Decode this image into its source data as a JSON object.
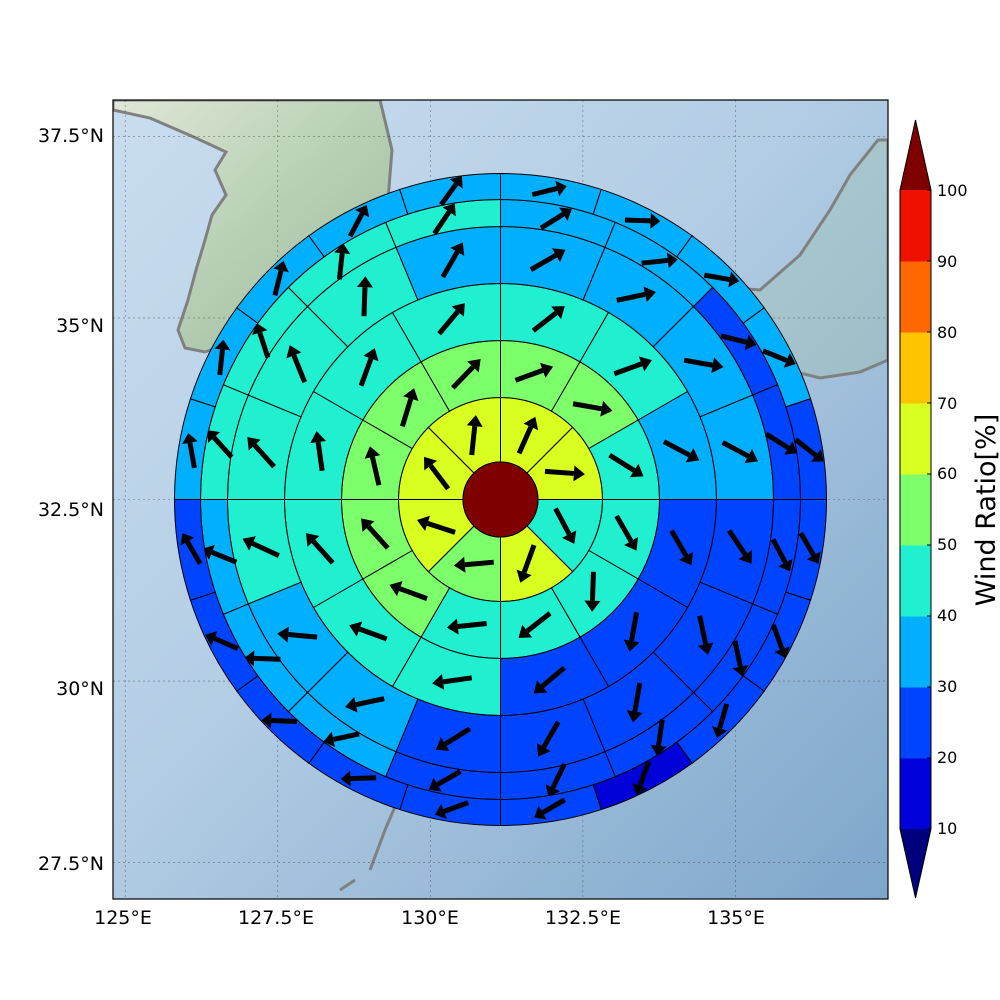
{
  "map": {
    "lon_ticks": [
      "125°E",
      "127.5°E",
      "130°E",
      "132.5°E",
      "135°E"
    ],
    "lat_ticks": [
      "37.5°N",
      "35°N",
      "32.5°N",
      "30°N",
      "27.5°N"
    ],
    "lon_tick_values": [
      125,
      127.5,
      130,
      132.5,
      135
    ],
    "lat_tick_values": [
      37.5,
      35,
      32.5,
      30,
      27.5
    ],
    "extent": {
      "lon": [
        124.8,
        137.5
      ],
      "lat": [
        27.0,
        38.0
      ]
    },
    "gridlines": true,
    "coastline_color": "#808080",
    "background": "shaded relief"
  },
  "colorbar": {
    "label": "Wind Ratio[%]",
    "ticks": [
      "10",
      "20",
      "30",
      "40",
      "50",
      "60",
      "70",
      "80",
      "90",
      "100"
    ],
    "bounds": [
      10,
      20,
      30,
      40,
      50,
      60,
      70,
      80,
      90,
      100
    ],
    "colors": [
      "#0000d8",
      "#0044ff",
      "#00b0ff",
      "#20f0d0",
      "#7cff6a",
      "#d8ff20",
      "#ffc400",
      "#ff6800",
      "#f01000"
    ],
    "under_color": "#00007f",
    "over_color": "#7f0000",
    "extend": "both"
  },
  "chart_data": {
    "type": "polar_grid",
    "center_lonlat": [
      131.15,
      32.5
    ],
    "center_color": "#7f0000",
    "ring_radii_km": [
      100,
      200,
      300,
      400,
      500,
      600
    ],
    "rings": [
      {
        "ring": 1,
        "sectors": 8,
        "values": [
          63,
          63,
          47,
          63,
          57,
          63,
          63,
          63
        ],
        "arrow_dir_deg": [
          24,
          94,
          152,
          200,
          265,
          288,
          323,
          6
        ]
      },
      {
        "ring": 2,
        "sectors": 12,
        "values": [
          55,
          55,
          43,
          42,
          43,
          43,
          48,
          53,
          53,
          53,
          53,
          55
        ],
        "arrow_dir_deg": [
          70,
          100,
          122,
          150,
          182,
          232,
          264,
          290,
          318,
          347,
          17,
          44
        ]
      },
      {
        "ring": 3,
        "sectors": 12,
        "values": [
          46,
          46,
          38,
          25,
          23,
          23,
          40,
          45,
          45,
          45,
          45,
          46
        ],
        "arrow_dir_deg": [
          52,
          70,
          118,
          150,
          190,
          230,
          262,
          290,
          318,
          352,
          20,
          40
        ]
      },
      {
        "ring": 4,
        "sectors": 16,
        "values": [
          38,
          38,
          38,
          38,
          24,
          24,
          24,
          23,
          23,
          35,
          35,
          42,
          42,
          42,
          42,
          38
        ],
        "arrow_dir_deg": [
          60,
          78,
          100,
          118,
          146,
          168,
          190,
          210,
          238,
          258,
          275,
          295,
          318,
          338,
          2,
          30
        ]
      },
      {
        "ring": 5,
        "sectors": 16,
        "values": [
          36,
          36,
          28,
          28,
          25,
          25,
          24,
          24,
          23,
          32,
          32,
          36,
          42,
          42,
          42,
          42
        ],
        "arrow_dir_deg": [
          58,
          84,
          104,
          122,
          152,
          168,
          188,
          206,
          240,
          258,
          272,
          292,
          318,
          342,
          6,
          34
        ]
      },
      {
        "ring": 6,
        "sectors": 20,
        "values": [
          30,
          30,
          32,
          32,
          21,
          24,
          22,
          20,
          16,
          23,
          24,
          24,
          24,
          24,
          22,
          30,
          32,
          32,
          32,
          32
        ],
        "arrow_dir_deg": [
          76,
          92,
          100,
          112,
          128,
          150,
          160,
          196,
          200,
          240,
          250,
          268,
          272,
          293,
          330,
          350,
          6,
          14,
          28,
          36
        ]
      }
    ]
  }
}
